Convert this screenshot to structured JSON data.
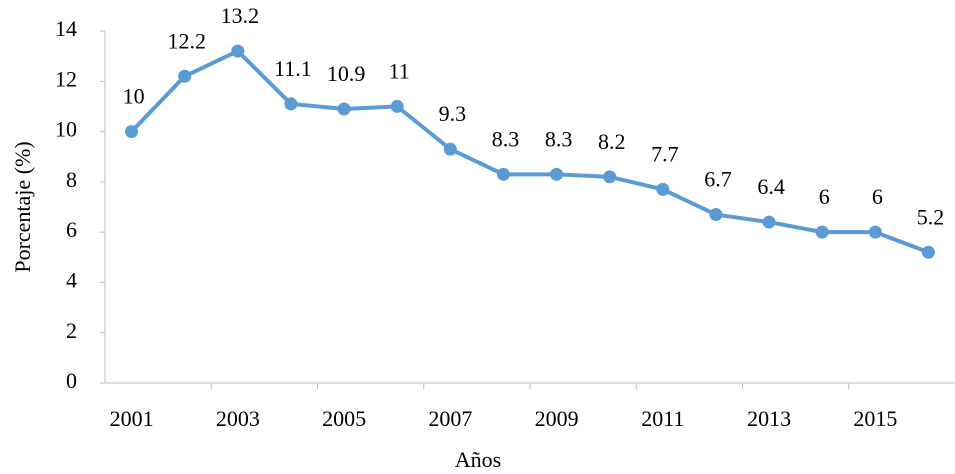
{
  "chart_data": {
    "type": "line",
    "x_label": "Años",
    "y_label": "Porcentaje (%)",
    "categories": [
      "2001",
      null,
      "2003",
      null,
      "2005",
      null,
      "2007",
      null,
      "2009",
      null,
      "2011",
      null,
      "2013",
      null,
      "2015",
      null
    ],
    "series": [
      {
        "name": "Porcentaje",
        "color": "#5b9bd5",
        "values": [
          10,
          12.2,
          13.2,
          11.1,
          10.9,
          11,
          9.3,
          8.3,
          8.3,
          8.2,
          7.7,
          6.7,
          6.4,
          6,
          6,
          5.2
        ]
      }
    ],
    "ylim": [
      0,
      14
    ],
    "yticks": [
      0,
      2,
      4,
      6,
      8,
      10,
      12,
      14
    ],
    "grid": false
  }
}
